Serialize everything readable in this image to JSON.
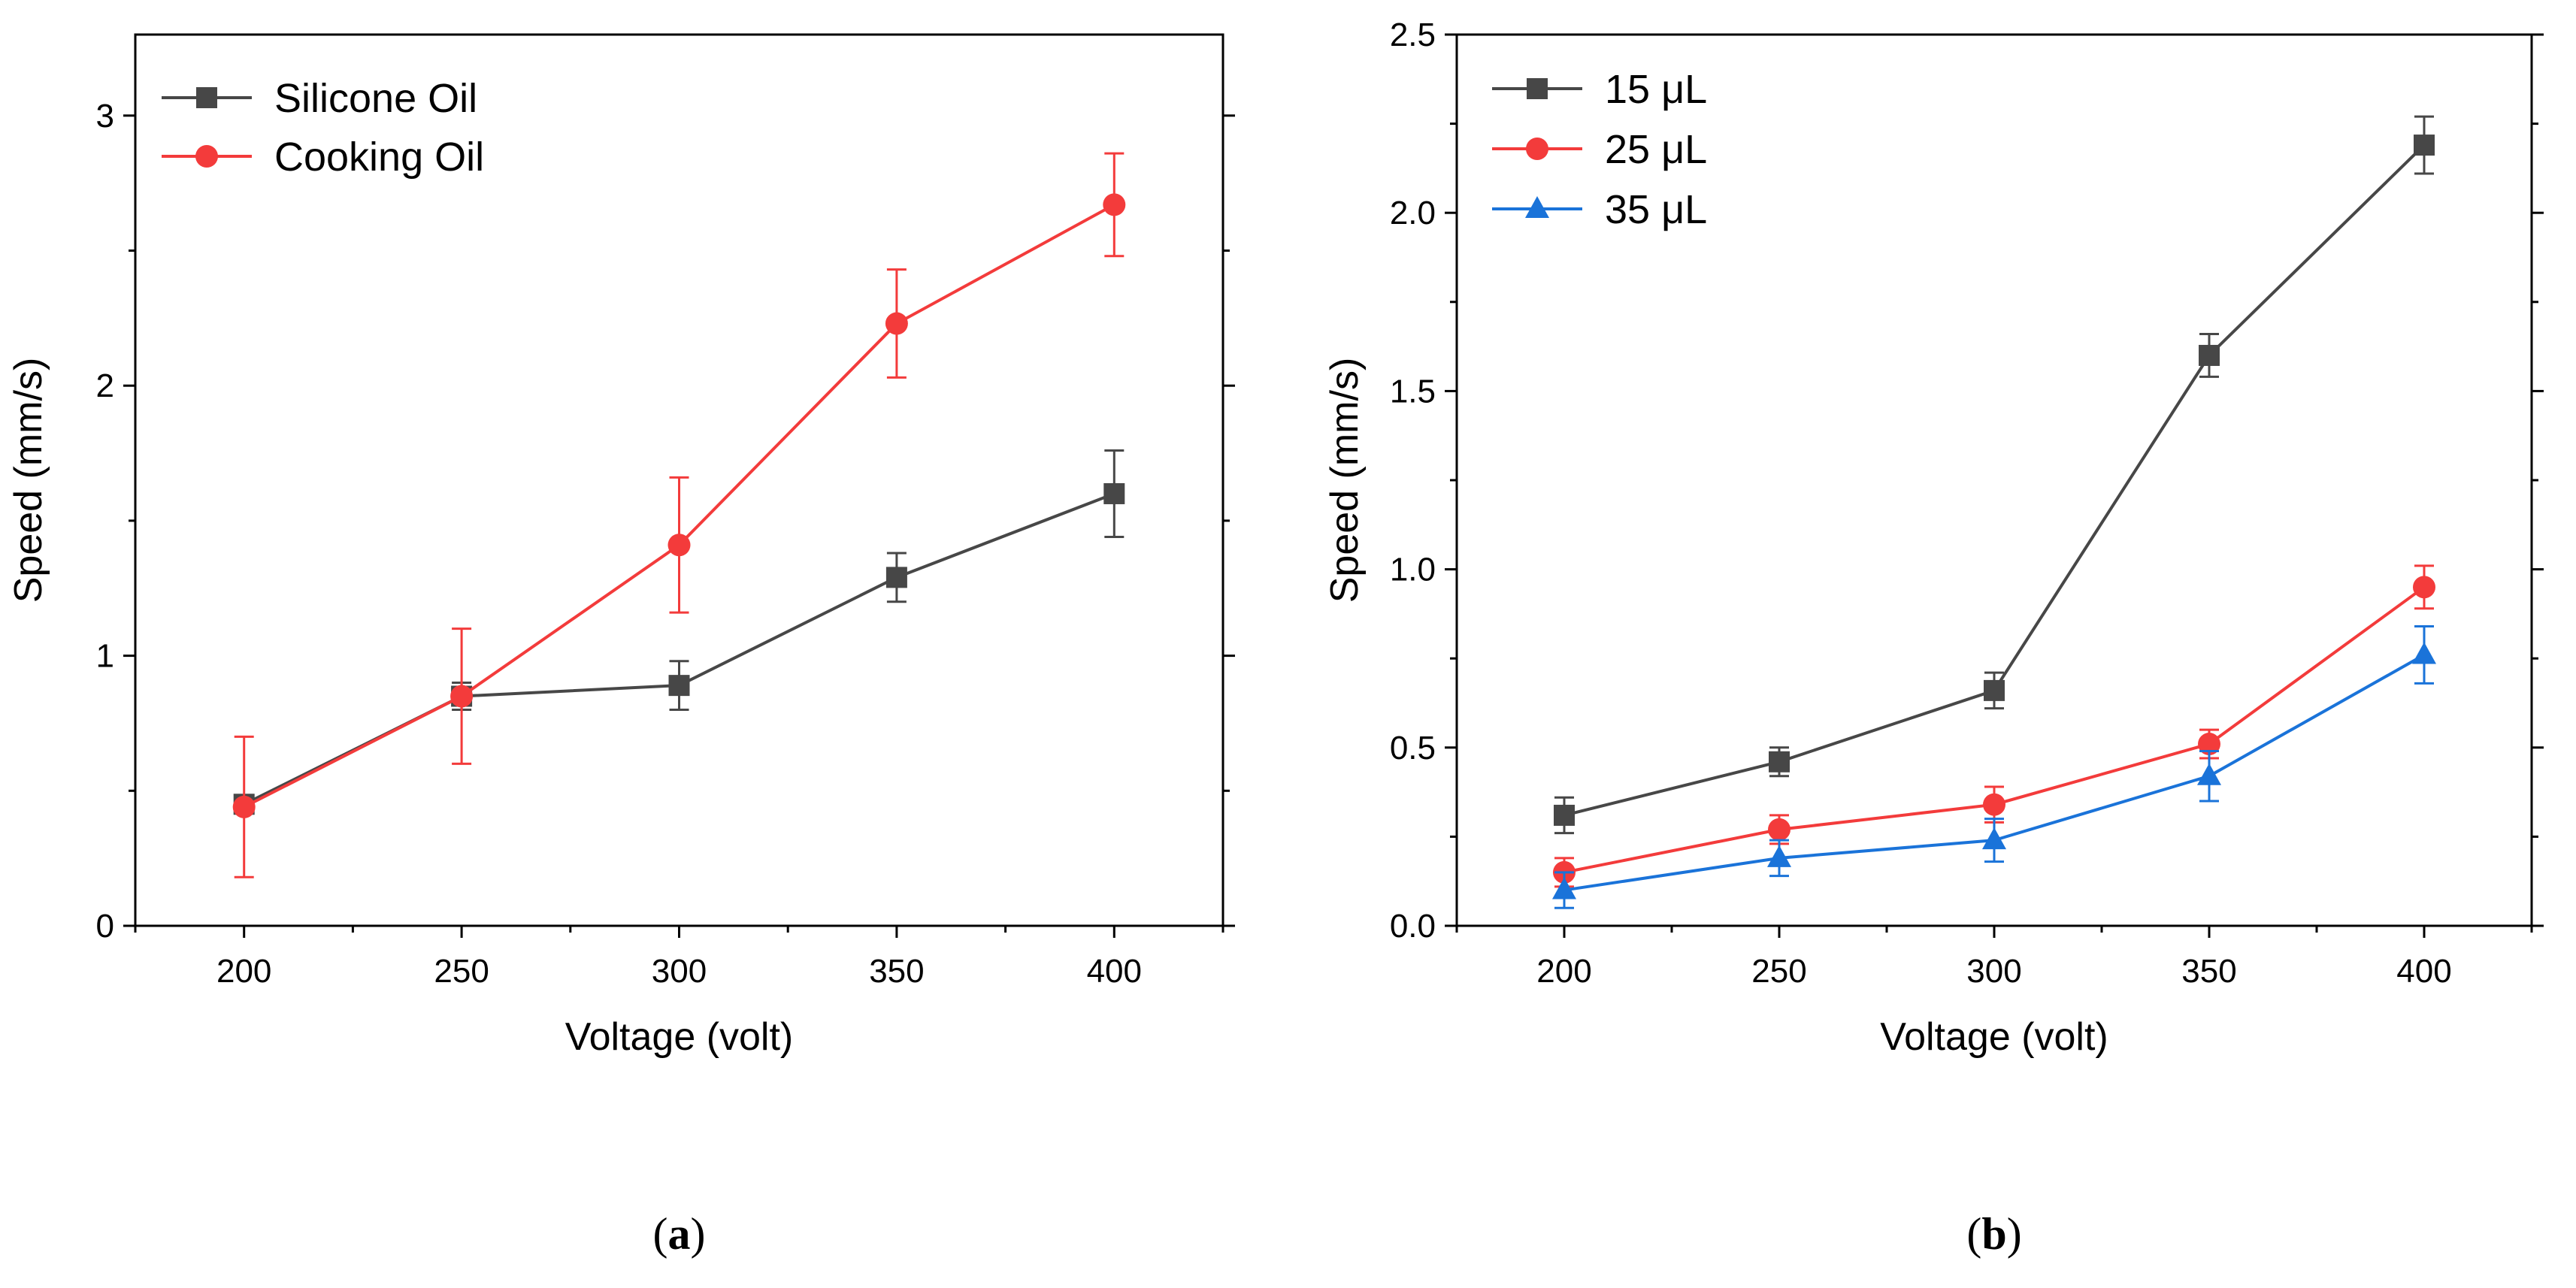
{
  "chart_data": [
    {
      "type": "line",
      "panel": "a",
      "caption": "(a)",
      "xlabel": "Voltage (volt)",
      "ylabel": "Speed (mm/s)",
      "xlim": [
        175,
        425
      ],
      "ylim": [
        0,
        3.3
      ],
      "xticks": [
        200,
        250,
        300,
        350,
        400
      ],
      "yticks": [
        0,
        1,
        2,
        3
      ],
      "ytick_labels": [
        "0",
        "1",
        "2",
        "3"
      ],
      "legend_position": "top-left",
      "x": [
        200,
        250,
        300,
        350,
        400
      ],
      "series": [
        {
          "name": "Silicone Oil",
          "color": "#474747",
          "marker": "square",
          "values": [
            0.45,
            0.85,
            0.89,
            1.29,
            1.6
          ],
          "errors": [
            0.03,
            0.05,
            0.09,
            0.09,
            0.16
          ]
        },
        {
          "name": "Cooking Oil",
          "color": "#f33b3b",
          "marker": "circle",
          "values": [
            0.44,
            0.85,
            1.41,
            2.23,
            2.67
          ],
          "errors": [
            0.26,
            0.25,
            0.25,
            0.2,
            0.19
          ]
        }
      ]
    },
    {
      "type": "line",
      "panel": "b",
      "caption": "(b)",
      "xlabel": "Voltage (volt)",
      "ylabel": "Speed (mm/s)",
      "xlim": [
        175,
        425
      ],
      "ylim": [
        0,
        2.5
      ],
      "xticks": [
        200,
        250,
        300,
        350,
        400
      ],
      "yticks": [
        0,
        0.5,
        1.0,
        1.5,
        2.0,
        2.5
      ],
      "ytick_labels": [
        "0.0",
        "0.5",
        "1.0",
        "1.5",
        "2.0",
        "2.5"
      ],
      "legend_position": "top-left",
      "x": [
        200,
        250,
        300,
        350,
        400
      ],
      "series": [
        {
          "name": "15 μL",
          "color": "#474747",
          "marker": "square",
          "values": [
            0.31,
            0.46,
            0.66,
            1.6,
            2.19
          ],
          "errors": [
            0.05,
            0.04,
            0.05,
            0.06,
            0.08
          ]
        },
        {
          "name": "25 μL",
          "color": "#f33b3b",
          "marker": "circle",
          "values": [
            0.15,
            0.27,
            0.34,
            0.51,
            0.95
          ],
          "errors": [
            0.04,
            0.04,
            0.05,
            0.04,
            0.06
          ]
        },
        {
          "name": "35 μL",
          "color": "#1a73d9",
          "marker": "triangle",
          "values": [
            0.1,
            0.19,
            0.24,
            0.42,
            0.76
          ],
          "errors": [
            0.05,
            0.05,
            0.06,
            0.07,
            0.08
          ]
        }
      ]
    }
  ]
}
